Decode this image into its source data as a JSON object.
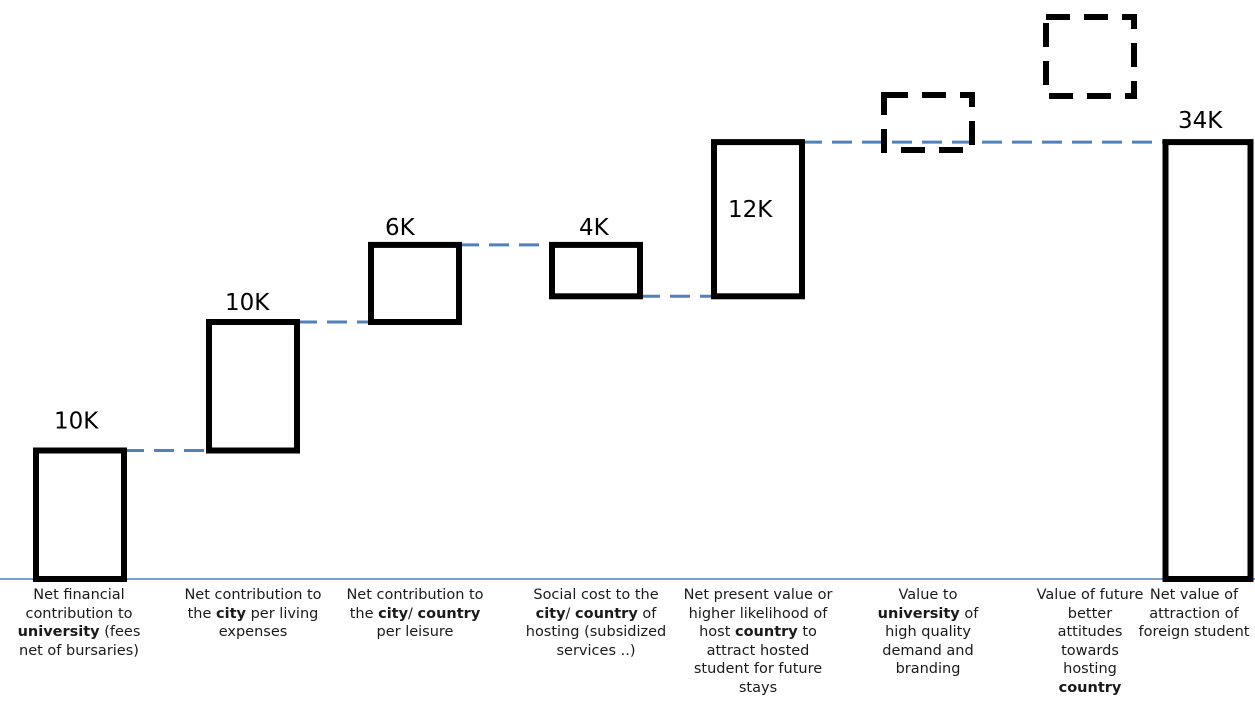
{
  "chart_data": {
    "type": "waterfall",
    "title": "",
    "xlabel": "",
    "ylabel": "",
    "ylim": [
      0,
      42
    ],
    "grid": false,
    "legend": "none",
    "colors": {
      "bar_stroke": "#000000",
      "connector": "#4f81bd",
      "baseline": "#4f81bd"
    },
    "steps": [
      {
        "id": "c1",
        "label": "10K",
        "value": 10,
        "kind": "increase",
        "category": [
          {
            "t": "Net financial contribution to "
          },
          {
            "t": "university",
            "b": true
          },
          {
            "t": " (fees net of bursaries)"
          }
        ]
      },
      {
        "id": "c2",
        "label": "10K",
        "value": 10,
        "kind": "increase",
        "category": [
          {
            "t": "Net contribution to the "
          },
          {
            "t": "city",
            "b": true
          },
          {
            "t": " per living expenses"
          }
        ]
      },
      {
        "id": "c3",
        "label": "6K",
        "value": 6,
        "kind": "increase",
        "category": [
          {
            "t": "Net contribution to the "
          },
          {
            "t": "city",
            "b": true
          },
          {
            "t": "/ "
          },
          {
            "t": "country",
            "b": true
          },
          {
            "t": " per leisure"
          }
        ]
      },
      {
        "id": "c4",
        "label": "4K",
        "value": -4,
        "kind": "decrease",
        "category": [
          {
            "t": "Social cost  to the "
          },
          {
            "t": "city",
            "b": true
          },
          {
            "t": "/ "
          },
          {
            "t": "country",
            "b": true
          },
          {
            "t": " of hosting (subsidized services ..)"
          }
        ]
      },
      {
        "id": "c5",
        "label": "12K",
        "value": 12,
        "kind": "increase",
        "category": [
          {
            "t": "Net present value or higher likelihood of host "
          },
          {
            "t": "country",
            "b": true
          },
          {
            "t": " to attract hosted student for future stays"
          }
        ]
      },
      {
        "id": "c6",
        "label": "",
        "value": null,
        "kind": "unquantified",
        "category": [
          {
            "t": "Value to "
          },
          {
            "t": "university",
            "b": true
          },
          {
            "t": " of high quality demand and branding"
          }
        ]
      },
      {
        "id": "c7",
        "label": "",
        "value": null,
        "kind": "unquantified",
        "category": [
          {
            "t": "Value of future better attitudes towards hosting "
          },
          {
            "t": "country",
            "b": true
          }
        ]
      },
      {
        "id": "c8",
        "label": "34K",
        "value": 34,
        "kind": "total",
        "category": [
          {
            "t": "Net value of attraction of foreign student"
          }
        ]
      }
    ]
  }
}
